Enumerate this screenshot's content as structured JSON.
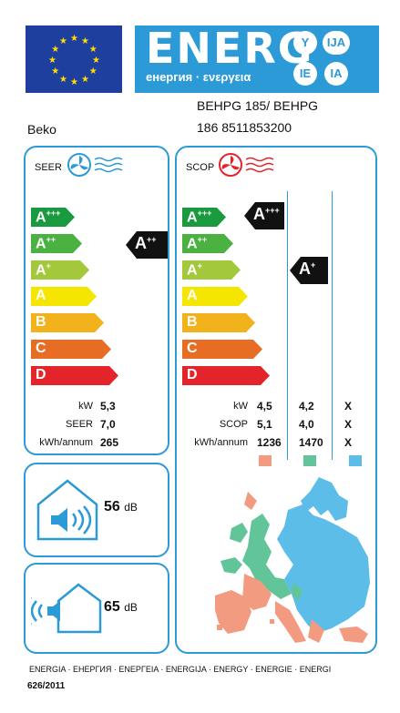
{
  "header": {
    "energy_word": "ENERG",
    "energy_sub": "енергия · ενεργεια",
    "letters": [
      "Y",
      "IJA",
      "IE",
      "IA"
    ],
    "model_line1": "BEHPG 185/ BEHPG",
    "model_line2": "186 8511853200",
    "supplier": "Beko"
  },
  "seer": {
    "label": "SEER",
    "classes": [
      "A+++",
      "A++",
      "A+",
      "A",
      "B",
      "C",
      "D"
    ],
    "rating": "A++",
    "rows": [
      {
        "label": "kW",
        "value": "5,3"
      },
      {
        "label": "SEER",
        "value": "7,0"
      },
      {
        "label": "kWh/annum",
        "value": "265"
      }
    ]
  },
  "scop": {
    "label": "SCOP",
    "classes": [
      "A+++",
      "A++",
      "A+",
      "A",
      "B",
      "C",
      "D"
    ],
    "ratings": [
      "A+++",
      "A+"
    ],
    "rows": [
      {
        "label": "kW",
        "v1": "4,5",
        "v2": "4,2",
        "v3": "X"
      },
      {
        "label": "SCOP",
        "v1": "5,1",
        "v2": "4,0",
        "v3": "X"
      },
      {
        "label": "kWh/annum",
        "v1": "1236",
        "v2": "1470",
        "v3": "X"
      }
    ],
    "zone_colors": [
      "#f29b80",
      "#62c59a",
      "#5bbde8"
    ]
  },
  "noise": {
    "indoor_value": "56",
    "outdoor_value": "65",
    "unit": "dB"
  },
  "footer": {
    "languages": "ENERGIA · ЕНЕРГИЯ · ΕΝΕΡΓΕΙΑ · ENERGIJA · ENERGY · ENERGIE · ENERGI",
    "regulation": "626/2011"
  },
  "class_colors": [
    "#1a9a3e",
    "#4bb242",
    "#a4c83b",
    "#f5e600",
    "#f2b21c",
    "#e66d23",
    "#e3242b"
  ],
  "accent": "#2c9ad7"
}
